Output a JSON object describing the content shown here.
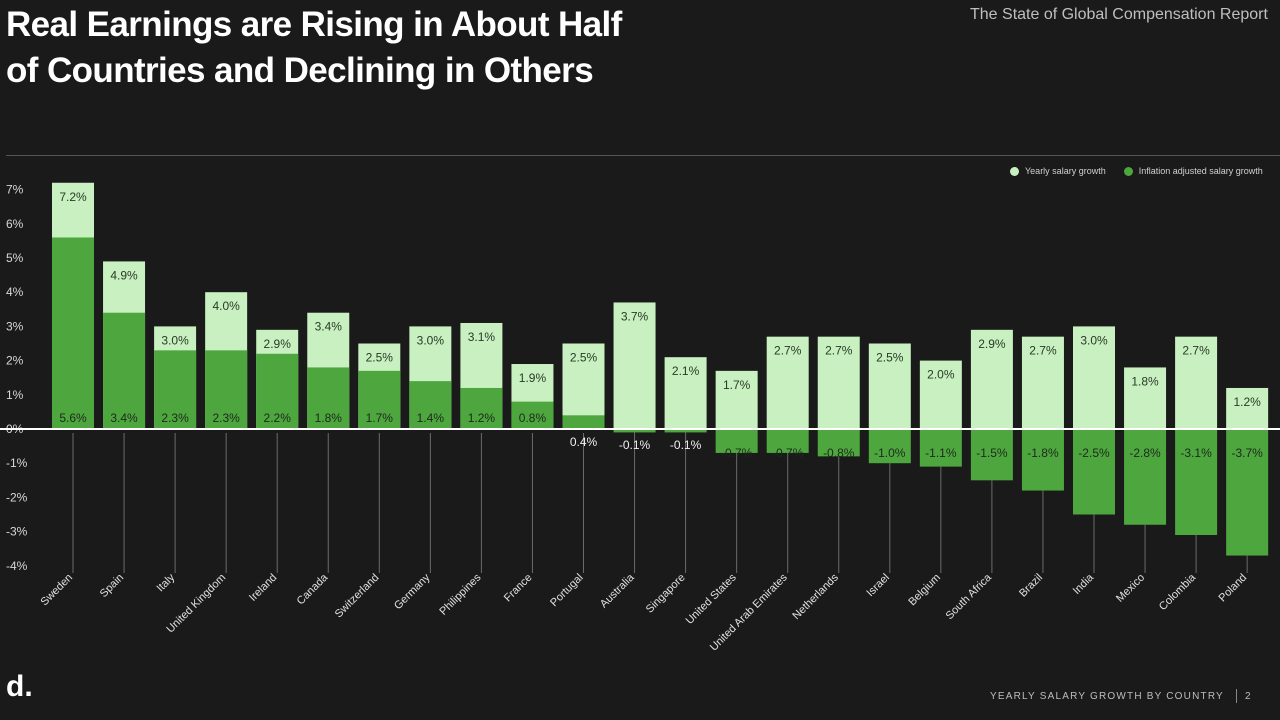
{
  "header": {
    "title_line1": "Real Earnings are Rising in About Half",
    "title_line2": "of Countries and Declining in Others",
    "report": "The State of Global Compensation Report"
  },
  "footer": {
    "logo": "d.",
    "label": "YEARLY SALARY GROWTH BY COUNTRY",
    "page": "2"
  },
  "colors": {
    "yearly": "#c8f0c0",
    "adjusted": "#4ea63f",
    "background": "#1a1a1a"
  },
  "chart_data": {
    "type": "bar",
    "yticks": [
      "7%",
      "6%",
      "5%",
      "4%",
      "3%",
      "2%",
      "1%",
      "0%",
      "-1%",
      "-2%",
      "-3%",
      "-4%"
    ],
    "ylim": [
      -4,
      7
    ],
    "grid": false,
    "legend_position": "top-right",
    "categories": [
      "Sweden",
      "Spain",
      "Italy",
      "United Kingdom",
      "Ireland",
      "Canada",
      "Switzerland",
      "Germany",
      "Philippines",
      "France",
      "Portugal",
      "Australia",
      "Singapore",
      "United States",
      "United Arab Emirates",
      "Netherlands",
      "Israel",
      "Belgium",
      "South Africa",
      "Brazil",
      "India",
      "Mexico",
      "Colombia",
      "Poland"
    ],
    "series": [
      {
        "name": "Yearly salary growth",
        "values": [
          7.2,
          4.9,
          3.0,
          4.0,
          2.9,
          3.4,
          2.5,
          3.0,
          3.1,
          1.9,
          2.5,
          3.7,
          2.1,
          1.7,
          2.7,
          2.7,
          2.5,
          2.0,
          2.9,
          2.7,
          3.0,
          1.8,
          2.7,
          1.2
        ],
        "labels": [
          "7.2%",
          "4.9%",
          "3.0%",
          "4.0%",
          "2.9%",
          "3.4%",
          "2.5%",
          "3.0%",
          "3.1%",
          "1.9%",
          "2.5%",
          "3.7%",
          "2.1%",
          "1.7%",
          "2.7%",
          "2.7%",
          "2.5%",
          "2.0%",
          "2.9%",
          "2.7%",
          "3.0%",
          "1.8%",
          "2.7%",
          "1.2%"
        ]
      },
      {
        "name": "Inflation adjusted salary growth",
        "values": [
          5.6,
          3.4,
          2.3,
          2.3,
          2.2,
          1.8,
          1.7,
          1.4,
          1.2,
          0.8,
          0.4,
          -0.1,
          -0.1,
          -0.7,
          -0.7,
          -0.8,
          -1.0,
          -1.1,
          -1.5,
          -1.8,
          -2.5,
          -2.8,
          -3.1,
          -3.7
        ],
        "labels": [
          "5.6%",
          "3.4%",
          "2.3%",
          "2.3%",
          "2.2%",
          "1.8%",
          "1.7%",
          "1.4%",
          "1.2%",
          "0.8%",
          "0.4%",
          "-0.1%",
          "-0.1%",
          "-0.7%",
          "-0.7%",
          "-0.8%",
          "-1.0%",
          "-1.1%",
          "-1.5%",
          "-1.8%",
          "-2.5%",
          "-2.8%",
          "-3.1%",
          "-3.7%"
        ]
      }
    ]
  }
}
